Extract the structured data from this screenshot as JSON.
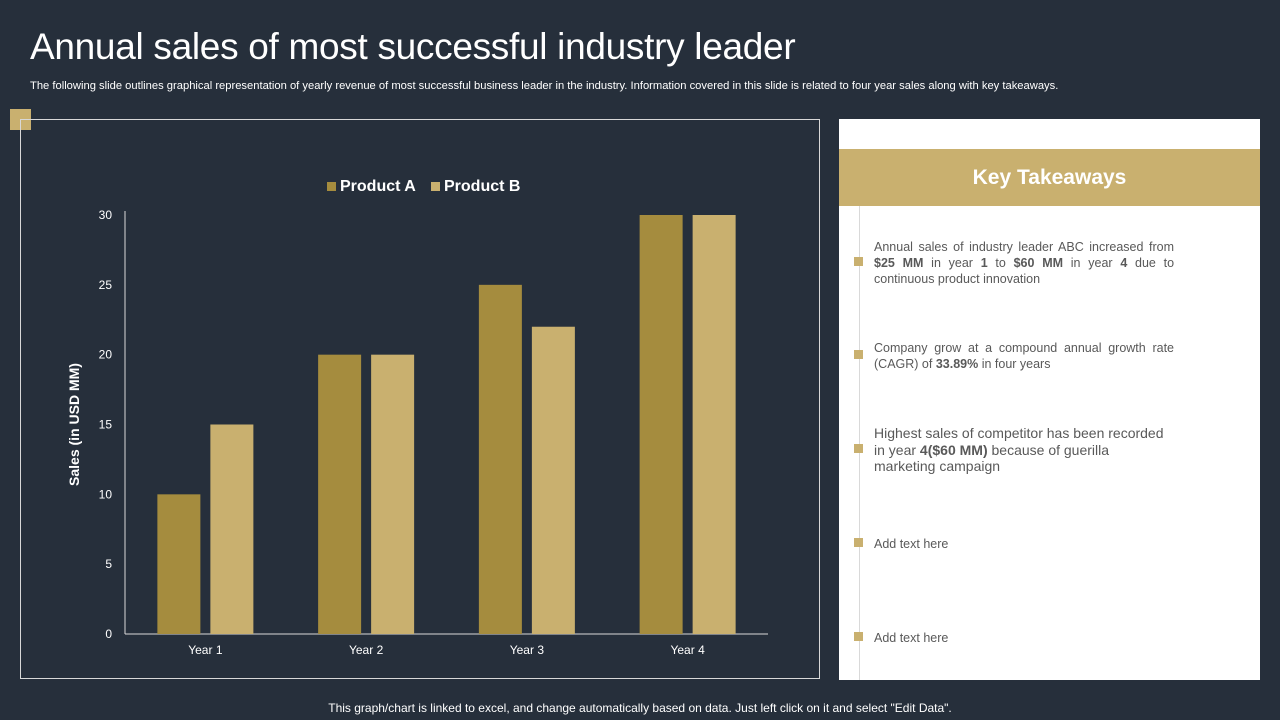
{
  "page": {
    "title": "Annual sales of most successful industry leader",
    "subtitle": "The following slide outlines graphical representation of yearly revenue of most successful business leader in the industry. Information covered in this slide is related to four year sales along with key takeaways.",
    "footer": "This graph/chart is linked to excel, and change automatically based on data. Just left click on it and select \"Edit Data\"."
  },
  "colors": {
    "background": "#262f3b",
    "accent": "#c9b06f",
    "product_a": "#a58c3e",
    "product_b": "#c9b06f",
    "panel_bg": "#ffffff",
    "panel_text": "#595959"
  },
  "chart_data": {
    "type": "bar",
    "title": "",
    "categories": [
      "Year 1",
      "Year 2",
      "Year 3",
      "Year 4"
    ],
    "series": [
      {
        "name": "Product A",
        "values": [
          10,
          20,
          25,
          30
        ]
      },
      {
        "name": "Product B",
        "values": [
          15,
          20,
          22,
          30
        ]
      }
    ],
    "xlabel": "",
    "ylabel": "Sales (in USD MM)",
    "ylim": [
      0,
      30
    ],
    "yticks": [
      0,
      5,
      10,
      15,
      20,
      25,
      30
    ],
    "grid": false,
    "legend": "top-center"
  },
  "takeaways": {
    "header": "Key Takeaways",
    "items": [
      {
        "parts": [
          {
            "t": "Annual sales of industry leader ABC increased from "
          },
          {
            "t": "$25 MM",
            "b": true
          },
          {
            "t": " in year "
          },
          {
            "t": "1",
            "b": true
          },
          {
            "t": " to "
          },
          {
            "t": "$60 MM",
            "b": true
          },
          {
            "t": " in year "
          },
          {
            "t": "4",
            "b": true
          },
          {
            "t": " due to continuous product innovation"
          }
        ]
      },
      {
        "parts": [
          {
            "t": "Company grow at a compound annual growth rate (CAGR) of "
          },
          {
            "t": "33.89%",
            "b": true
          },
          {
            "t": " in four years"
          }
        ]
      },
      {
        "parts": [
          {
            "t": "Highest sales of competitor has been recorded in year "
          },
          {
            "t": "4($60 MM)",
            "b": true
          },
          {
            "t": " because of guerilla marketing campaign"
          }
        ]
      },
      {
        "parts": [
          {
            "t": "Add text here"
          }
        ]
      },
      {
        "parts": [
          {
            "t": "Add text here"
          }
        ]
      }
    ]
  }
}
